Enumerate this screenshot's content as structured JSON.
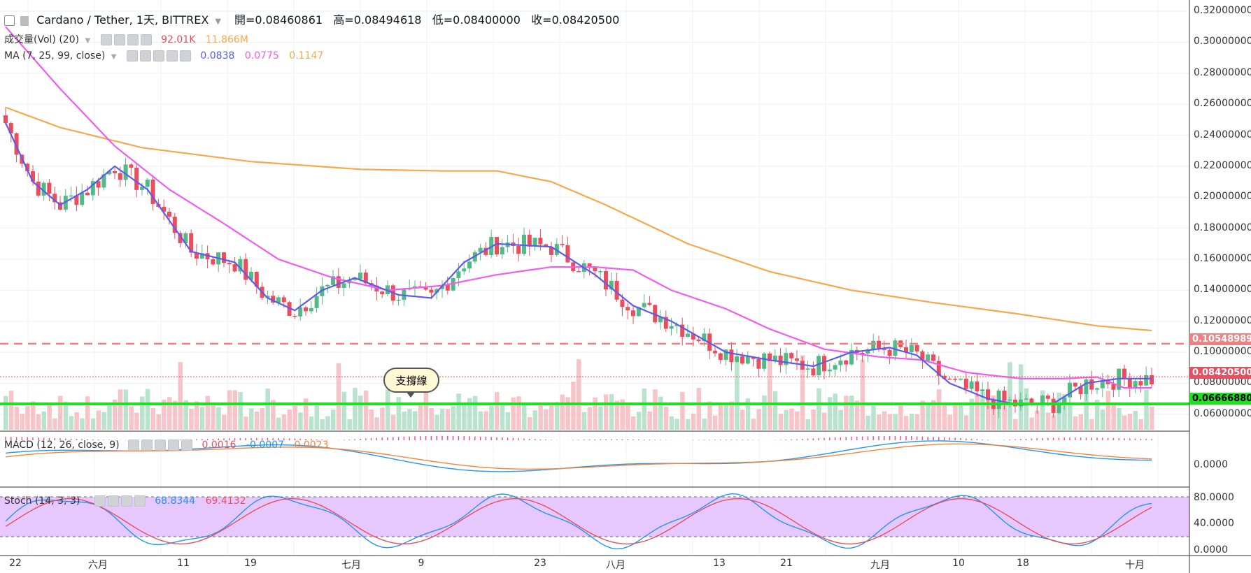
{
  "header": {
    "title": "Cardano / Tether, 1天, BITTREX",
    "open": "開=0.08460861",
    "high": "高=0.08494618",
    "low": "低=0.08400000",
    "close": "收=0.08420500"
  },
  "vol_legend": {
    "label": "成交量(Vol) (20)",
    "v1": "92.01K",
    "v2": "11.866M"
  },
  "ma_legend": {
    "label": "MA (7, 25, 99, close)",
    "v1": "0.0838",
    "v2": "0.0775",
    "v3": "0.1147"
  },
  "macd_legend": {
    "label": "MACD (12, 26, close, 9)",
    "v1": "0.0016",
    "v2": "-0.0007",
    "v3": "0.0023"
  },
  "stoch_legend": {
    "label": "Stoch (14, 3, 3)",
    "v1": "68.8344",
    "v2": "69.4132"
  },
  "annotation": "支撐線",
  "colors": {
    "up": "#53b987",
    "down": "#eb4d5c",
    "ma7": "#5b5bf0",
    "ma25": "#f15cf0",
    "ma99": "#f7a84a",
    "support": "#1ee01e",
    "resistance": "#ec8282"
  },
  "chart_data": {
    "type": "candlestick",
    "symbol": "Cardano / Tether",
    "interval": "1天",
    "exchange": "BITTREX",
    "price_axis": {
      "ticks": [
        "0.32000000",
        "0.30000000",
        "0.28000000",
        "0.26000000",
        "0.24000000",
        "0.22000000",
        "0.20000000",
        "0.18000000",
        "0.16000000",
        "0.14000000",
        "0.12000000",
        "0.10000000",
        "0.08000000",
        "0.06000000"
      ],
      "range": [
        0.05,
        0.325
      ]
    },
    "x_ticks": [
      "22",
      "六月",
      "11",
      "19",
      "七月",
      "9",
      "23",
      "八月",
      "13",
      "21",
      "九月",
      "10",
      "18",
      "十月"
    ],
    "levels": [
      {
        "name": "resistance",
        "value": "0.10548989"
      },
      {
        "name": "last",
        "value": "0.08420500"
      },
      {
        "name": "support",
        "value": "0.06666880"
      }
    ],
    "macd_axis": {
      "ticks": [
        "0.0000"
      ]
    },
    "stoch_axis": {
      "ticks": [
        "80.0000",
        "40.0000",
        "0.0000"
      ]
    },
    "ma7_anchors": [
      [
        0,
        0.248
      ],
      [
        5,
        0.21
      ],
      [
        10,
        0.195
      ],
      [
        15,
        0.205
      ],
      [
        20,
        0.22
      ],
      [
        26,
        0.205
      ],
      [
        34,
        0.165
      ],
      [
        42,
        0.158
      ],
      [
        48,
        0.135
      ],
      [
        53,
        0.127
      ],
      [
        58,
        0.14
      ],
      [
        64,
        0.148
      ],
      [
        72,
        0.137
      ],
      [
        78,
        0.135
      ],
      [
        84,
        0.158
      ],
      [
        90,
        0.17
      ],
      [
        100,
        0.168
      ],
      [
        108,
        0.15
      ],
      [
        115,
        0.13
      ],
      [
        122,
        0.12
      ],
      [
        132,
        0.1
      ],
      [
        140,
        0.095
      ],
      [
        148,
        0.091
      ],
      [
        155,
        0.1
      ],
      [
        162,
        0.103
      ],
      [
        167,
        0.098
      ],
      [
        173,
        0.08
      ],
      [
        180,
        0.07
      ],
      [
        186,
        0.066
      ],
      [
        192,
        0.067
      ],
      [
        198,
        0.08
      ],
      [
        204,
        0.083
      ],
      [
        210,
        0.083
      ]
    ],
    "ma25_anchors": [
      [
        0,
        0.31
      ],
      [
        10,
        0.27
      ],
      [
        20,
        0.233
      ],
      [
        30,
        0.205
      ],
      [
        40,
        0.183
      ],
      [
        50,
        0.16
      ],
      [
        60,
        0.148
      ],
      [
        70,
        0.14
      ],
      [
        80,
        0.143
      ],
      [
        90,
        0.15
      ],
      [
        100,
        0.155
      ],
      [
        108,
        0.155
      ],
      [
        115,
        0.153
      ],
      [
        122,
        0.14
      ],
      [
        132,
        0.128
      ],
      [
        140,
        0.115
      ],
      [
        150,
        0.102
      ],
      [
        160,
        0.097
      ],
      [
        168,
        0.095
      ],
      [
        176,
        0.087
      ],
      [
        186,
        0.083
      ],
      [
        194,
        0.083
      ],
      [
        200,
        0.084
      ],
      [
        205,
        0.077
      ],
      [
        210,
        0.077
      ]
    ],
    "ma99_anchors": [
      [
        0,
        0.258
      ],
      [
        10,
        0.245
      ],
      [
        25,
        0.232
      ],
      [
        45,
        0.223
      ],
      [
        65,
        0.218
      ],
      [
        80,
        0.217
      ],
      [
        90,
        0.217
      ],
      [
        100,
        0.21
      ],
      [
        110,
        0.195
      ],
      [
        125,
        0.17
      ],
      [
        140,
        0.152
      ],
      [
        155,
        0.14
      ],
      [
        170,
        0.132
      ],
      [
        185,
        0.125
      ],
      [
        200,
        0.117
      ],
      [
        210,
        0.114
      ]
    ]
  }
}
